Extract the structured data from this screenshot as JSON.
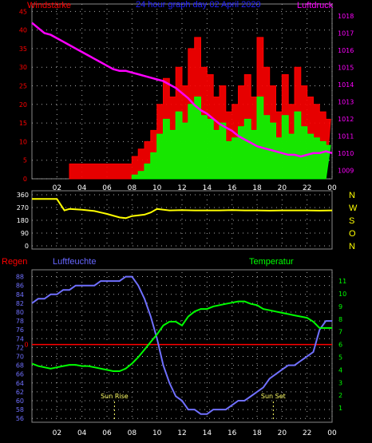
{
  "chart_data": [
    {
      "type": "line",
      "title": "24 hour graph day  02 April 2020",
      "left_label": "Windstärke",
      "right_label": "Luftdruck",
      "x_ticks": [
        "02",
        "04",
        "06",
        "08",
        "10",
        "12",
        "14",
        "16",
        "18",
        "20",
        "22",
        "00"
      ],
      "x_tick_hours": [
        2,
        4,
        6,
        8,
        10,
        12,
        14,
        16,
        18,
        20,
        22,
        24
      ],
      "xlim": [
        0,
        24
      ],
      "ylim": [
        0,
        47
      ],
      "y_ticks": [
        0,
        5,
        10,
        15,
        20,
        25,
        30,
        35,
        40,
        45
      ],
      "ylim_right": [
        1008.5,
        1018.7
      ],
      "y_ticks_right": [
        1009,
        1010,
        1011,
        1012,
        1013,
        1014,
        1015,
        1016,
        1017,
        1018
      ],
      "grid": true,
      "colors": {
        "gust": "#ff0000",
        "wind": "#00ff00",
        "pressure": "#ff00ff",
        "title": "#2222ff"
      },
      "series": [
        {
          "name": "Luftdruck",
          "axis": "right",
          "x": [
            0,
            0.5,
            1,
            1.5,
            2,
            2.5,
            3,
            3.5,
            4,
            4.5,
            5,
            5.5,
            6,
            6.5,
            7,
            7.5,
            8,
            8.5,
            9,
            9.5,
            10,
            10.5,
            11,
            11.5,
            12,
            12.5,
            13,
            13.5,
            14,
            14.5,
            15,
            15.5,
            16,
            16.5,
            17,
            17.5,
            18,
            18.5,
            19,
            19.5,
            20,
            20.5,
            21,
            21.5,
            22,
            22.5,
            23,
            23.5,
            24
          ],
          "values": [
            1017.6,
            1017.3,
            1017.0,
            1016.9,
            1016.7,
            1016.5,
            1016.3,
            1016.1,
            1015.9,
            1015.7,
            1015.5,
            1015.3,
            1015.1,
            1014.9,
            1014.8,
            1014.8,
            1014.7,
            1014.6,
            1014.5,
            1014.4,
            1014.3,
            1014.2,
            1014.0,
            1013.8,
            1013.5,
            1013.2,
            1012.8,
            1012.5,
            1012.3,
            1012.0,
            1011.7,
            1011.5,
            1011.3,
            1011.0,
            1010.8,
            1010.6,
            1010.4,
            1010.3,
            1010.2,
            1010.1,
            1010.0,
            1009.9,
            1009.9,
            1009.8,
            1009.9,
            1010.0,
            1010.0,
            1010.1,
            1010.0
          ]
        },
        {
          "name": "Böen",
          "axis": "left",
          "x": [
            3,
            3.5,
            4,
            4.5,
            5,
            5.5,
            6,
            6.5,
            7,
            7.5,
            8,
            8.5,
            9,
            9.5,
            10,
            10.5,
            11,
            11.5,
            12,
            12.5,
            13,
            13.5,
            14,
            14.5,
            15,
            15.5,
            16,
            16.5,
            17,
            17.5,
            18,
            18.5,
            19,
            19.5,
            20,
            20.5,
            21,
            21.5,
            22,
            22.5,
            23,
            23.5
          ],
          "values": [
            4,
            4,
            4,
            4,
            4,
            4,
            4,
            4,
            4,
            4,
            6,
            8,
            10,
            13,
            20,
            27,
            22,
            30,
            25,
            35,
            38,
            30,
            28,
            22,
            25,
            18,
            20,
            25,
            28,
            22,
            38,
            30,
            25,
            18,
            28,
            20,
            30,
            25,
            22,
            20,
            18,
            16
          ]
        },
        {
          "name": "Wind",
          "axis": "left",
          "x": [
            8,
            8.5,
            9,
            9.5,
            10,
            10.5,
            11,
            11.5,
            12,
            12.5,
            13,
            13.5,
            14,
            14.5,
            15,
            15.5,
            16,
            16.5,
            17,
            17.5,
            18,
            18.5,
            19,
            19.5,
            20,
            20.5,
            21,
            21.5,
            22,
            22.5,
            23,
            23.5
          ],
          "values": [
            1,
            2,
            4,
            7,
            12,
            16,
            13,
            18,
            15,
            20,
            22,
            17,
            16,
            13,
            15,
            10,
            11,
            14,
            16,
            13,
            22,
            17,
            15,
            11,
            17,
            12,
            18,
            14,
            12,
            11,
            10,
            9
          ]
        }
      ]
    },
    {
      "type": "line",
      "title": "",
      "right_labels": [
        "N",
        "W",
        "S",
        "O",
        "N"
      ],
      "x_ticks": [],
      "xlim": [
        0,
        24
      ],
      "ylim": [
        0,
        360
      ],
      "y_ticks": [
        0,
        90,
        180,
        270,
        360
      ],
      "grid": true,
      "colors": {
        "direction": "#ffff00"
      },
      "series": [
        {
          "name": "Windrichtung",
          "x": [
            0,
            1,
            2,
            2.6,
            3,
            4,
            5,
            6,
            7,
            7.5,
            8,
            9,
            9.5,
            10,
            11,
            12,
            13,
            14,
            15,
            16,
            17,
            18,
            19,
            20,
            21,
            22,
            23,
            24
          ],
          "values": [
            330,
            330,
            330,
            250,
            260,
            255,
            245,
            225,
            200,
            195,
            210,
            220,
            235,
            260,
            250,
            252,
            250,
            250,
            250,
            252,
            250,
            250,
            248,
            250,
            250,
            250,
            248,
            250
          ]
        }
      ]
    },
    {
      "type": "line",
      "title": "",
      "labels": {
        "regen": "Regen",
        "luftfeuchte": "Luftfeuchte",
        "temperatur": "Temperatur"
      },
      "x_ticks": [
        "02",
        "04",
        "06",
        "08",
        "10",
        "12",
        "14",
        "16",
        "18",
        "20",
        "22",
        "00"
      ],
      "x_tick_hours": [
        2,
        4,
        6,
        8,
        10,
        12,
        14,
        16,
        18,
        20,
        22,
        24
      ],
      "xlim": [
        0,
        24
      ],
      "ylim": [
        55.5,
        89
      ],
      "y_ticks": [
        56,
        58,
        60,
        62,
        64,
        66,
        68,
        70,
        72,
        74,
        76,
        78,
        80,
        82,
        84,
        86,
        88
      ],
      "ylim_right": [
        0,
        11.7
      ],
      "y_ticks_right": [
        1,
        2,
        3,
        4,
        5,
        6,
        7,
        8,
        9,
        10,
        11
      ],
      "rain_axis_label": "0",
      "rain_value": 0,
      "grid": true,
      "annotations": [
        {
          "label": "Sun Rise",
          "x": 6.6
        },
        {
          "label": "Sun Set",
          "x": 19.3
        }
      ],
      "colors": {
        "humidity": "#7070ff",
        "temperature": "#00ff00",
        "rain": "#ff0000",
        "regen": "#ff0000",
        "luftfeuchte": "#6666ff",
        "temperatur": "#00ff00",
        "annotation": "#ffff66"
      },
      "series": [
        {
          "name": "Luftfeuchte",
          "axis": "left",
          "x": [
            0,
            0.5,
            1,
            1.5,
            2,
            2.5,
            3,
            3.5,
            4,
            4.5,
            5,
            5.5,
            6,
            6.5,
            7,
            7.5,
            8,
            8.5,
            9,
            9.5,
            10,
            10.5,
            11,
            11.5,
            12,
            12.5,
            13,
            13.5,
            14,
            14.5,
            15,
            15.5,
            16,
            16.5,
            17,
            17.5,
            18,
            18.5,
            19,
            19.5,
            20,
            20.5,
            21,
            21.5,
            22,
            22.5,
            23,
            23.5,
            24
          ],
          "values": [
            82,
            83,
            83,
            84,
            84,
            85,
            85,
            86,
            86,
            86,
            86,
            87,
            87,
            87,
            87,
            88,
            88,
            86,
            83,
            79,
            74,
            68,
            64,
            61,
            60,
            58,
            58,
            57,
            57,
            58,
            58,
            58,
            59,
            60,
            60,
            61,
            62,
            63,
            65,
            66,
            67,
            68,
            68,
            69,
            70,
            71,
            76,
            78,
            78
          ]
        },
        {
          "name": "Temperatur",
          "axis": "right",
          "x": [
            0,
            0.5,
            1,
            1.5,
            2,
            2.5,
            3,
            3.5,
            4,
            4.5,
            5,
            5.5,
            6,
            6.5,
            7,
            7.5,
            8,
            8.5,
            9,
            9.5,
            10,
            10.5,
            11,
            11.5,
            12,
            12.5,
            13,
            13.5,
            14,
            14.5,
            15,
            15.5,
            16,
            16.5,
            17,
            17.5,
            18,
            18.5,
            19,
            19.5,
            20,
            20.5,
            21,
            21.5,
            22,
            22.5,
            23,
            23.5,
            24
          ],
          "values": [
            4.5,
            4.3,
            4.2,
            4.1,
            4.2,
            4.3,
            4.4,
            4.4,
            4.3,
            4.3,
            4.2,
            4.1,
            4.0,
            3.9,
            3.9,
            4.1,
            4.5,
            5.0,
            5.6,
            6.2,
            6.8,
            7.5,
            7.8,
            7.8,
            7.5,
            8.2,
            8.6,
            8.8,
            8.8,
            9.0,
            9.1,
            9.2,
            9.3,
            9.4,
            9.4,
            9.2,
            9.1,
            8.8,
            8.7,
            8.6,
            8.5,
            8.4,
            8.3,
            8.2,
            8.1,
            7.8,
            7.3,
            7.3,
            7.3
          ]
        }
      ]
    }
  ]
}
